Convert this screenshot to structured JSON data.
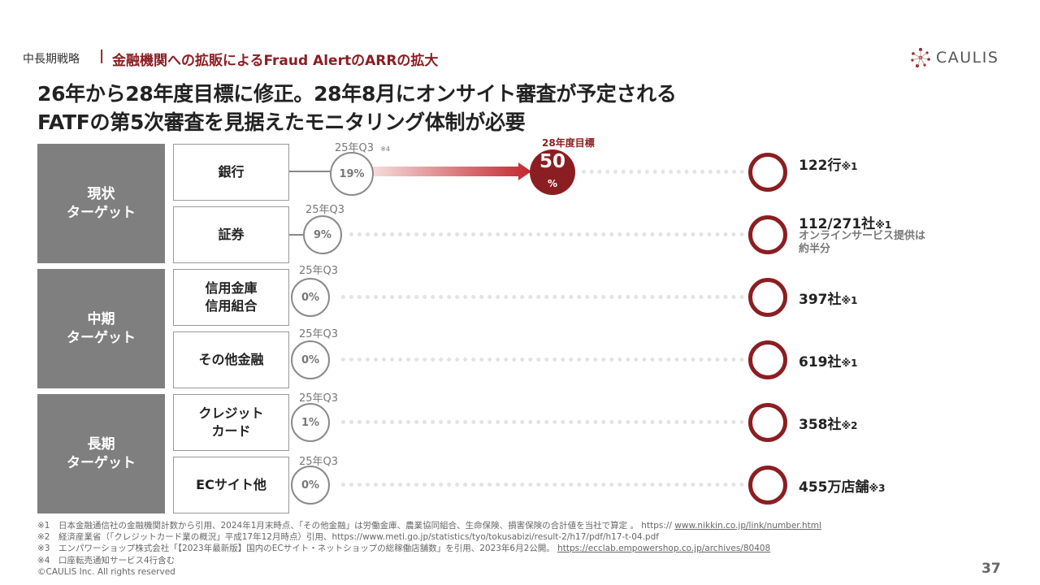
{
  "header": {
    "breadcrumb": "中長期戦略",
    "separator": "|",
    "subtitle": "金融機関への拡販によるFraud AlertのARRの拡大",
    "logo_text": "CAULIS"
  },
  "headline": {
    "line1": "26年から28年度目標に修正。28年8月にオンサイト審査が予定される",
    "line2": "FATFの第5次審査を見据えたモニタリング体制が必要"
  },
  "groups": [
    {
      "line1": "現状",
      "line2": "ターゲット"
    },
    {
      "line1": "中期",
      "line2": "ターゲット"
    },
    {
      "line1": "長期",
      "line2": "ターゲット"
    }
  ],
  "rows": [
    {
      "cat1": "銀行",
      "cat2": "",
      "q3": "25年Q3",
      "q3_note": "※4",
      "pct": "19%",
      "count": "122行",
      "count_note": "※1",
      "extra1": "",
      "extra2": ""
    },
    {
      "cat1": "証券",
      "cat2": "",
      "q3": "25年Q3",
      "q3_note": "",
      "pct": "9%",
      "count": "112/271社",
      "count_note": "※1",
      "extra1": "オンラインサービス提供は",
      "extra2": "約半分"
    },
    {
      "cat1": "信用金庫",
      "cat2": "信用組合",
      "q3": "25年Q3",
      "q3_note": "",
      "pct": "0%",
      "count": "397社",
      "count_note": "※1",
      "extra1": "",
      "extra2": ""
    },
    {
      "cat1": "その他金融",
      "cat2": "",
      "q3": "25年Q3",
      "q3_note": "",
      "pct": "0%",
      "count": "619社",
      "count_note": "※1",
      "extra1": "",
      "extra2": ""
    },
    {
      "cat1": "クレジット",
      "cat2": "カード",
      "q3": "25年Q3",
      "q3_note": "",
      "pct": "1%",
      "count": "358社",
      "count_note": "※2",
      "extra1": "",
      "extra2": ""
    },
    {
      "cat1": "ECサイト他",
      "cat2": "",
      "q3": "25年Q3",
      "q3_note": "",
      "pct": "0%",
      "count": "455万店舗",
      "count_note": "※3",
      "extra1": "",
      "extra2": ""
    }
  ],
  "target": {
    "label": "28年度目標",
    "value": "50",
    "unit": "%"
  },
  "footnotes": [
    {
      "text": "※1　日本金融通信社の金融機関計数から引用、2024年1月末時点、「その他金融」は労働金庫、農業協同組合、生命保険、損害保険の合計値を当社で算定 。 https:// ",
      "link": "www.nikkin.co.jp/link/number.html"
    },
    {
      "text": "※2　経済産業省（「クレジットカード業の概況」平成17年12月時点）引用、https://www.meti.go.jp/statistics/tyo/tokusabizi/result-2/h17/pdf/h17-t-04.pdf",
      "link": ""
    },
    {
      "text": "※3　エンパワーショップ株式会社「【2023年最新版】国内のECサイト・ネットショップの総稼働店舗数」を引用、2023年6月2公開。 ",
      "link": "https://ecclab.empowershop.co.jp/archives/80408"
    },
    {
      "text": "※4　口座転売通知サービス4行含む",
      "link": ""
    }
  ],
  "copyright": "©CAULIS Inc. All rights reserved",
  "page_number": "37",
  "colors": {
    "brand": "#8b1e22",
    "group_bg": "#7f7f7f",
    "ring": "#8b1e22"
  }
}
